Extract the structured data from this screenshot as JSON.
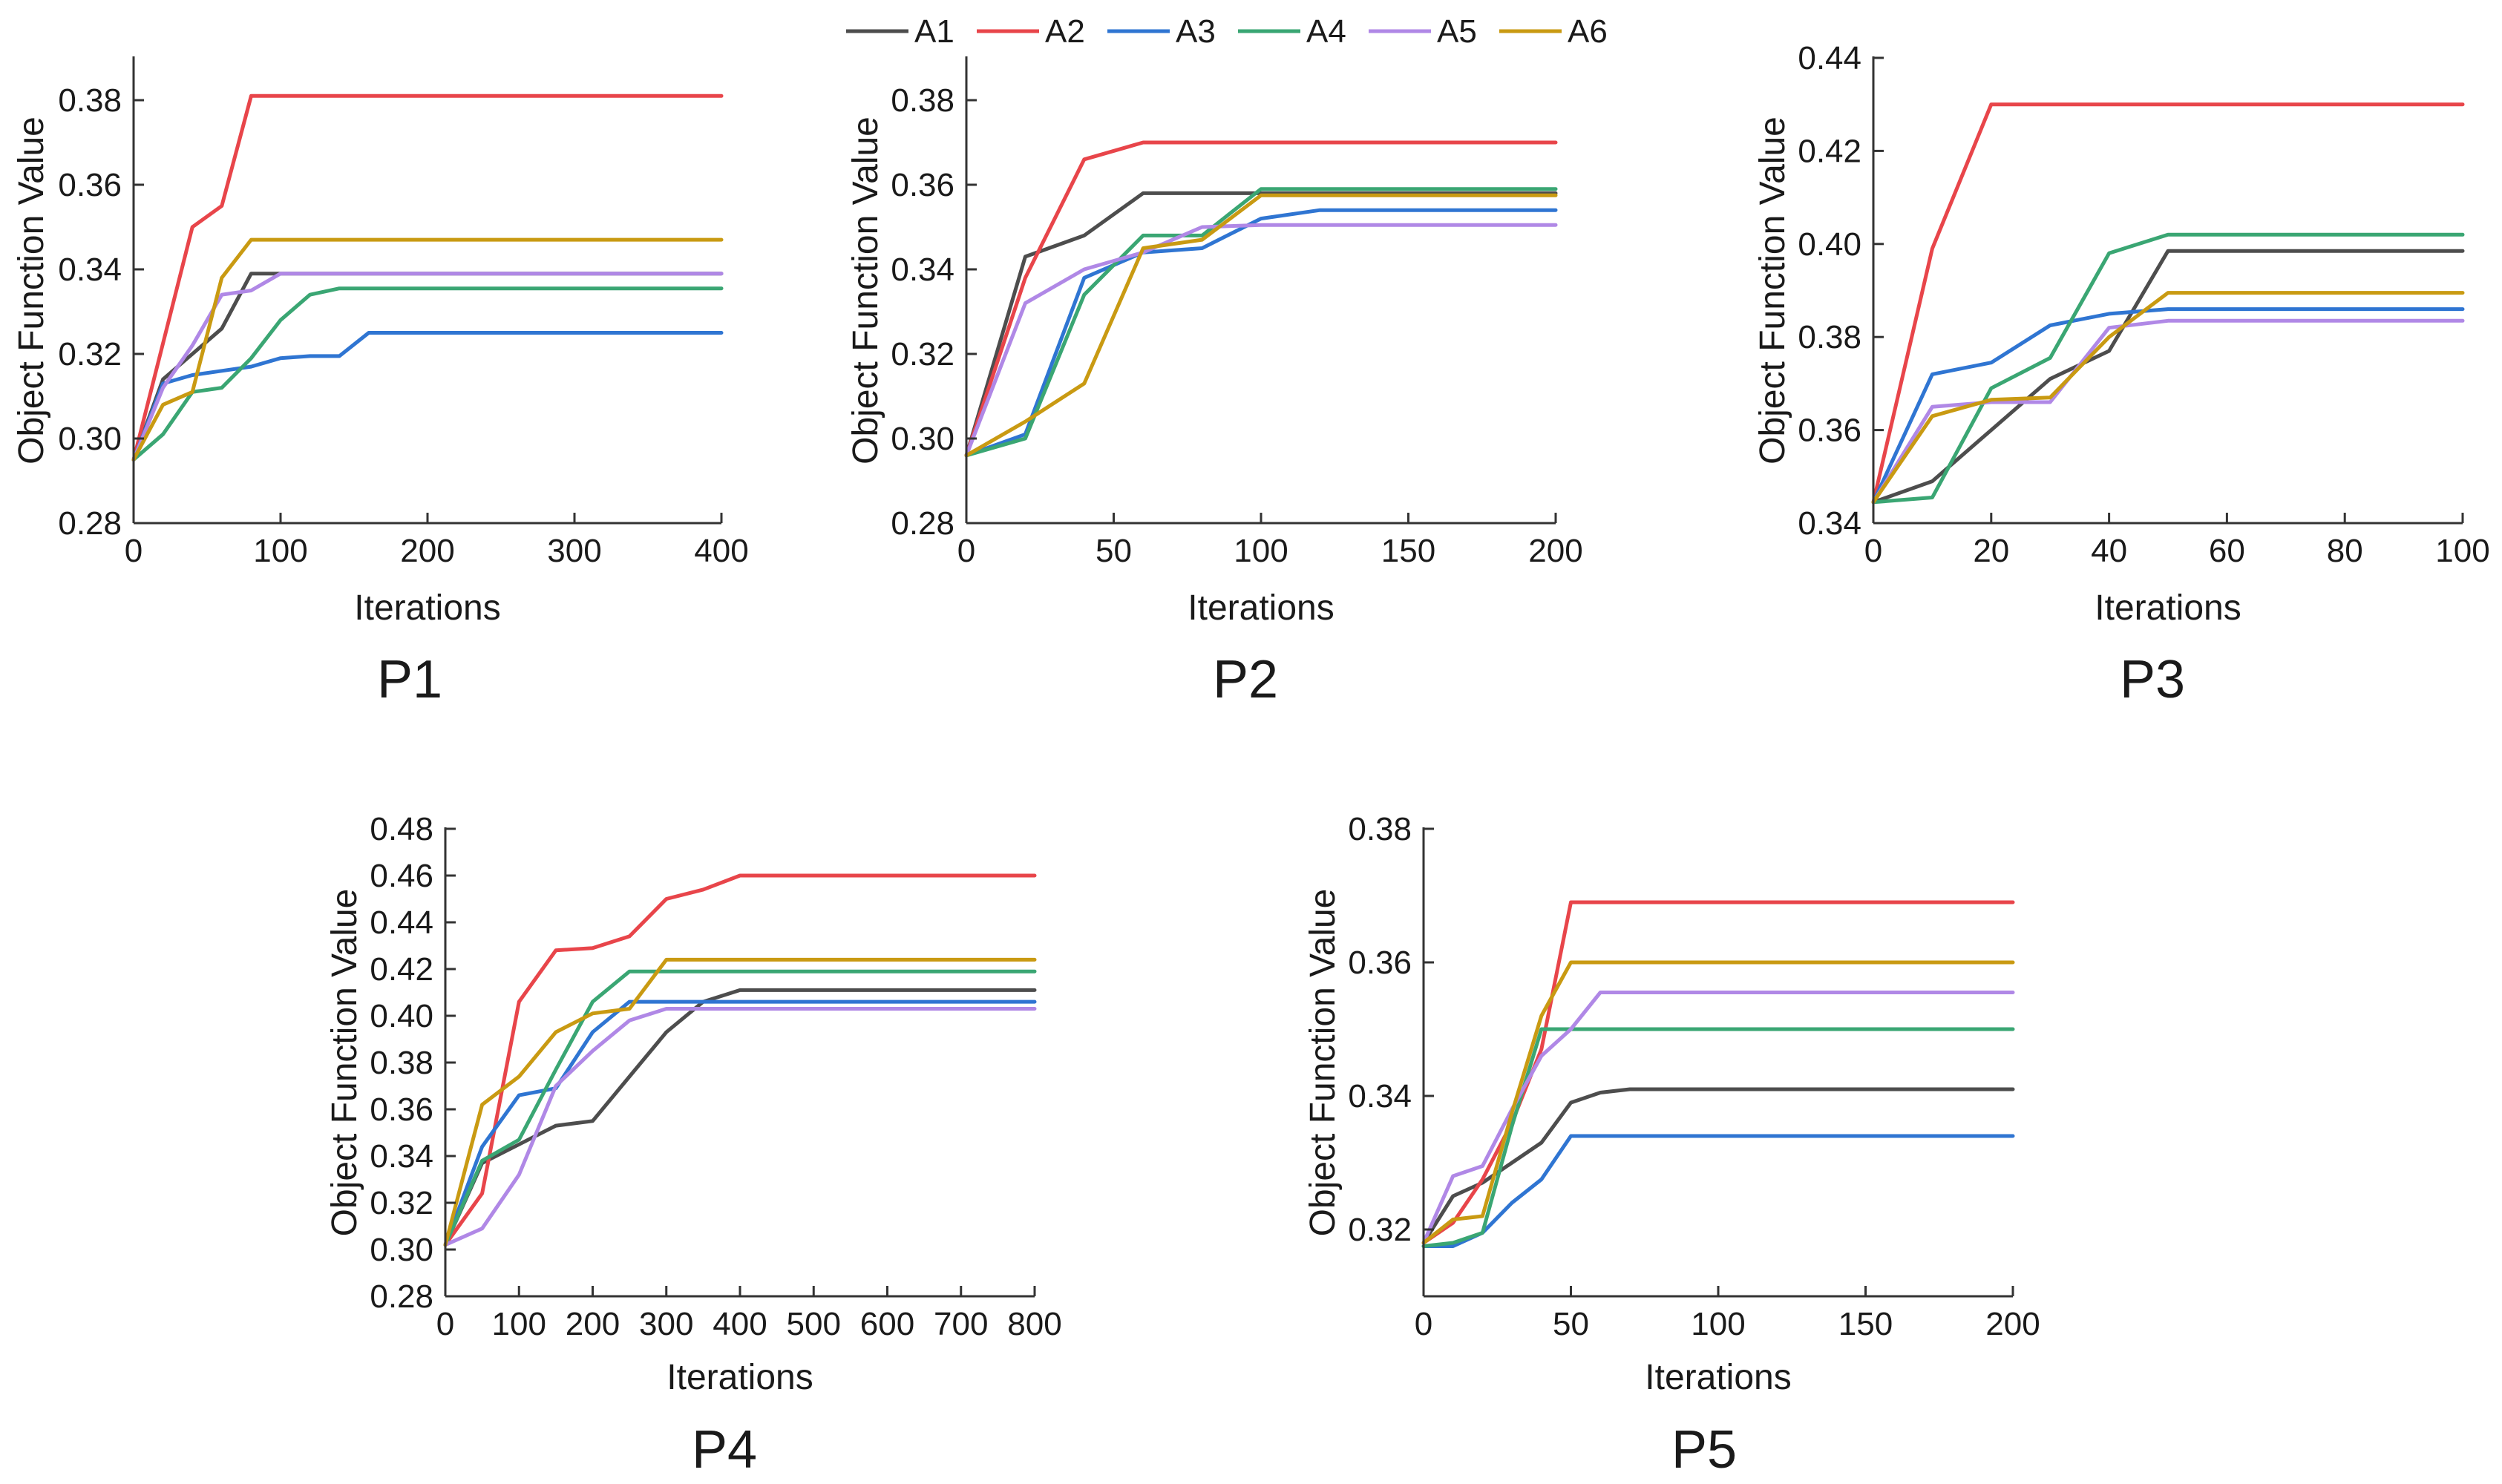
{
  "legend": [
    {
      "name": "A1",
      "color": "#4d4d4d"
    },
    {
      "name": "A2",
      "color": "#e8454a"
    },
    {
      "name": "A3",
      "color": "#2f75d2"
    },
    {
      "name": "A4",
      "color": "#3aa673"
    },
    {
      "name": "A5",
      "color": "#b088e6"
    },
    {
      "name": "A6",
      "color": "#c99a12"
    }
  ],
  "chart_data": [
    {
      "type": "line",
      "title": "P1",
      "xlabel": "Iterations",
      "ylabel": "Object Function Value",
      "xlim": [
        0,
        400
      ],
      "ylim": [
        0.28,
        0.39
      ],
      "xticks": [
        0,
        100,
        200,
        300,
        400
      ],
      "xtick_labels": [
        "0",
        "100",
        "200",
        "300",
        "400"
      ],
      "yticks": [
        0.28,
        0.3,
        0.32,
        0.34,
        0.36,
        0.38
      ],
      "ytick_labels": [
        "0.28",
        "0.30",
        "0.32",
        "0.34",
        "0.36",
        "0.38"
      ],
      "series": [
        {
          "name": "A1",
          "x": [
            0,
            20,
            40,
            60,
            80,
            400
          ],
          "y": [
            0.295,
            0.314,
            0.32,
            0.326,
            0.339,
            0.339
          ]
        },
        {
          "name": "A2",
          "x": [
            0,
            40,
            60,
            80,
            400
          ],
          "y": [
            0.295,
            0.35,
            0.355,
            0.381,
            0.381
          ]
        },
        {
          "name": "A3",
          "x": [
            0,
            20,
            40,
            60,
            80,
            100,
            120,
            140,
            160,
            400
          ],
          "y": [
            0.295,
            0.313,
            0.315,
            0.316,
            0.317,
            0.319,
            0.3195,
            0.3195,
            0.325,
            0.325
          ]
        },
        {
          "name": "A4",
          "x": [
            0,
            20,
            40,
            60,
            80,
            100,
            120,
            140,
            400
          ],
          "y": [
            0.295,
            0.301,
            0.311,
            0.312,
            0.319,
            0.328,
            0.334,
            0.3355,
            0.3355
          ]
        },
        {
          "name": "A5",
          "x": [
            0,
            20,
            40,
            60,
            80,
            100,
            400
          ],
          "y": [
            0.295,
            0.312,
            0.322,
            0.334,
            0.335,
            0.339,
            0.339
          ]
        },
        {
          "name": "A6",
          "x": [
            0,
            20,
            40,
            60,
            80,
            400
          ],
          "y": [
            0.295,
            0.308,
            0.311,
            0.338,
            0.347,
            0.347
          ]
        }
      ]
    },
    {
      "type": "line",
      "title": "P2",
      "xlabel": "Iterations",
      "ylabel": "Object Function Value",
      "xlim": [
        0,
        200
      ],
      "ylim": [
        0.28,
        0.39
      ],
      "xticks": [
        0,
        50,
        100,
        150,
        200
      ],
      "xtick_labels": [
        "0",
        "50",
        "100",
        "150",
        "200"
      ],
      "yticks": [
        0.28,
        0.3,
        0.32,
        0.34,
        0.36,
        0.38
      ],
      "ytick_labels": [
        "0.28",
        "0.30",
        "0.32",
        "0.34",
        "0.36",
        "0.38"
      ],
      "series": [
        {
          "name": "A1",
          "x": [
            0,
            20,
            40,
            60,
            200
          ],
          "y": [
            0.296,
            0.343,
            0.348,
            0.358,
            0.358
          ]
        },
        {
          "name": "A2",
          "x": [
            0,
            20,
            40,
            60,
            200
          ],
          "y": [
            0.296,
            0.338,
            0.366,
            0.37,
            0.37
          ]
        },
        {
          "name": "A3",
          "x": [
            0,
            20,
            40,
            60,
            80,
            100,
            120,
            200
          ],
          "y": [
            0.296,
            0.301,
            0.338,
            0.344,
            0.345,
            0.352,
            0.354,
            0.354
          ]
        },
        {
          "name": "A4",
          "x": [
            0,
            20,
            40,
            60,
            80,
            100,
            200
          ],
          "y": [
            0.296,
            0.3,
            0.334,
            0.348,
            0.348,
            0.359,
            0.359
          ]
        },
        {
          "name": "A5",
          "x": [
            0,
            20,
            40,
            60,
            80,
            100,
            200
          ],
          "y": [
            0.296,
            0.332,
            0.34,
            0.344,
            0.35,
            0.3505,
            0.3505
          ]
        },
        {
          "name": "A6",
          "x": [
            0,
            20,
            40,
            60,
            80,
            100,
            200
          ],
          "y": [
            0.296,
            0.304,
            0.313,
            0.345,
            0.347,
            0.3575,
            0.3575
          ]
        }
      ]
    },
    {
      "type": "line",
      "title": "P3",
      "xlabel": "Iterations",
      "ylabel": "Object Function Value",
      "xlim": [
        0,
        100
      ],
      "ylim": [
        0.34,
        0.44
      ],
      "xticks": [
        0,
        20,
        40,
        60,
        80,
        100
      ],
      "xtick_labels": [
        "0",
        "20",
        "40",
        "60",
        "80",
        "100"
      ],
      "yticks": [
        0.34,
        0.36,
        0.38,
        0.4,
        0.42,
        0.44
      ],
      "ytick_labels": [
        "0.34",
        "0.36",
        "0.38",
        "0.40",
        "0.42",
        "0.44"
      ],
      "series": [
        {
          "name": "A1",
          "x": [
            0,
            10,
            20,
            30,
            40,
            50,
            100
          ],
          "y": [
            0.3445,
            0.349,
            0.36,
            0.371,
            0.377,
            0.3985,
            0.3985
          ]
        },
        {
          "name": "A2",
          "x": [
            0,
            10,
            20,
            100
          ],
          "y": [
            0.3445,
            0.399,
            0.43,
            0.43
          ]
        },
        {
          "name": "A3",
          "x": [
            0,
            10,
            20,
            30,
            40,
            50,
            100
          ],
          "y": [
            0.3445,
            0.372,
            0.3745,
            0.3825,
            0.385,
            0.386,
            0.386
          ]
        },
        {
          "name": "A4",
          "x": [
            0,
            10,
            20,
            30,
            40,
            50,
            100
          ],
          "y": [
            0.3445,
            0.3455,
            0.369,
            0.3755,
            0.398,
            0.402,
            0.402
          ]
        },
        {
          "name": "A5",
          "x": [
            0,
            10,
            20,
            30,
            40,
            50,
            100
          ],
          "y": [
            0.3445,
            0.365,
            0.366,
            0.366,
            0.382,
            0.3835,
            0.3835
          ]
        },
        {
          "name": "A6",
          "x": [
            0,
            10,
            20,
            30,
            40,
            50,
            100
          ],
          "y": [
            0.3445,
            0.363,
            0.3665,
            0.367,
            0.38,
            0.3895,
            0.3895
          ]
        }
      ]
    },
    {
      "type": "line",
      "title": "P4",
      "xlabel": "Iterations",
      "ylabel": "Object Function Value",
      "xlim": [
        0,
        800
      ],
      "ylim": [
        0.28,
        0.48
      ],
      "xticks": [
        0,
        100,
        200,
        300,
        400,
        500,
        600,
        700,
        800
      ],
      "xtick_labels": [
        "0",
        "100",
        "200",
        "300",
        "400",
        "500",
        "600",
        "700",
        "800"
      ],
      "yticks": [
        0.28,
        0.3,
        0.32,
        0.34,
        0.36,
        0.38,
        0.4,
        0.42,
        0.44,
        0.46,
        0.48
      ],
      "ytick_labels": [
        "0.28",
        "0.30",
        "0.32",
        "0.34",
        "0.36",
        "0.38",
        "0.40",
        "0.42",
        "0.44",
        "0.46",
        "0.48"
      ],
      "series": [
        {
          "name": "A1",
          "x": [
            0,
            50,
            100,
            150,
            200,
            250,
            300,
            350,
            400,
            800
          ],
          "y": [
            0.302,
            0.337,
            0.345,
            0.353,
            0.355,
            0.374,
            0.393,
            0.406,
            0.411,
            0.411
          ]
        },
        {
          "name": "A2",
          "x": [
            0,
            50,
            100,
            150,
            200,
            250,
            300,
            350,
            400,
            800
          ],
          "y": [
            0.302,
            0.324,
            0.406,
            0.428,
            0.429,
            0.434,
            0.45,
            0.454,
            0.46,
            0.46
          ]
        },
        {
          "name": "A3",
          "x": [
            0,
            50,
            100,
            150,
            200,
            250,
            800
          ],
          "y": [
            0.302,
            0.344,
            0.366,
            0.369,
            0.393,
            0.406,
            0.406
          ]
        },
        {
          "name": "A4",
          "x": [
            0,
            50,
            100,
            150,
            200,
            250,
            800
          ],
          "y": [
            0.302,
            0.338,
            0.347,
            0.377,
            0.406,
            0.419,
            0.419
          ]
        },
        {
          "name": "A5",
          "x": [
            0,
            50,
            100,
            150,
            200,
            250,
            300,
            800
          ],
          "y": [
            0.302,
            0.309,
            0.332,
            0.37,
            0.385,
            0.398,
            0.403,
            0.403
          ]
        },
        {
          "name": "A6",
          "x": [
            0,
            50,
            100,
            150,
            200,
            250,
            300,
            800
          ],
          "y": [
            0.302,
            0.362,
            0.374,
            0.393,
            0.401,
            0.403,
            0.424,
            0.424
          ]
        }
      ]
    },
    {
      "type": "line",
      "title": "P5",
      "xlabel": "Iterations",
      "ylabel": "Object Function Value",
      "xlim": [
        0,
        200
      ],
      "ylim": [
        0.31,
        0.38
      ],
      "xticks": [
        0,
        50,
        100,
        150,
        200
      ],
      "xtick_labels": [
        "0",
        "50",
        "100",
        "150",
        "200"
      ],
      "yticks": [
        0.32,
        0.34,
        0.36,
        0.38
      ],
      "ytick_labels": [
        "0.32",
        "0.34",
        "0.36",
        "0.38"
      ],
      "series": [
        {
          "name": "A1",
          "x": [
            0,
            10,
            20,
            30,
            40,
            50,
            60,
            70,
            200
          ],
          "y": [
            0.318,
            0.325,
            0.327,
            0.33,
            0.333,
            0.339,
            0.3405,
            0.341,
            0.341
          ]
        },
        {
          "name": "A2",
          "x": [
            0,
            10,
            20,
            30,
            40,
            50,
            200
          ],
          "y": [
            0.318,
            0.321,
            0.3275,
            0.336,
            0.347,
            0.369,
            0.369
          ]
        },
        {
          "name": "A3",
          "x": [
            0,
            10,
            20,
            30,
            40,
            50,
            200
          ],
          "y": [
            0.3175,
            0.3175,
            0.3195,
            0.324,
            0.3275,
            0.334,
            0.334
          ]
        },
        {
          "name": "A4",
          "x": [
            0,
            10,
            20,
            30,
            40,
            50,
            200
          ],
          "y": [
            0.3175,
            0.318,
            0.3195,
            0.3355,
            0.35,
            0.35,
            0.35
          ]
        },
        {
          "name": "A5",
          "x": [
            0,
            10,
            20,
            30,
            40,
            50,
            60,
            200
          ],
          "y": [
            0.318,
            0.328,
            0.3295,
            0.338,
            0.346,
            0.35,
            0.3555,
            0.3555
          ]
        },
        {
          "name": "A6",
          "x": [
            0,
            10,
            20,
            30,
            40,
            50,
            200
          ],
          "y": [
            0.318,
            0.3215,
            0.322,
            0.3375,
            0.352,
            0.36,
            0.36
          ]
        }
      ]
    }
  ]
}
